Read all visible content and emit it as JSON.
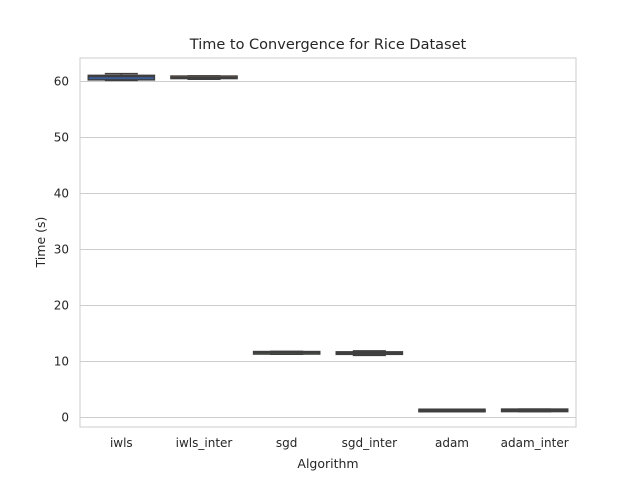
{
  "chart_data": {
    "type": "box",
    "title": "Time to Convergence for Rice Dataset",
    "xlabel": "Algorithm",
    "ylabel": "Time (s)",
    "ylim": [
      -1.7,
      64.2
    ],
    "yticks": [
      0,
      10,
      20,
      30,
      40,
      50,
      60
    ],
    "grid": true,
    "categories": [
      "iwls",
      "iwls_inter",
      "sgd",
      "sgd_inter",
      "adam",
      "adam_inter"
    ],
    "boxes": [
      {
        "min": 60.2,
        "q1": 60.3,
        "median": 60.9,
        "q3": 61.1,
        "max": 61.4,
        "color": "#3b5f9c"
      },
      {
        "min": 60.4,
        "q1": 60.6,
        "median": 60.7,
        "q3": 60.9,
        "max": 61.0,
        "color": "#d9884a"
      },
      {
        "min": 11.3,
        "q1": 11.4,
        "median": 11.6,
        "q3": 11.7,
        "max": 11.8,
        "color": "#5a9a5a"
      },
      {
        "min": 11.1,
        "q1": 11.3,
        "median": 11.5,
        "q3": 11.7,
        "max": 11.9,
        "color": "#b04a4a"
      },
      {
        "min": 1.1,
        "q1": 1.2,
        "median": 1.25,
        "q3": 1.3,
        "max": 1.35,
        "color": "#7e6aa6"
      },
      {
        "min": 1.05,
        "q1": 1.15,
        "median": 1.3,
        "q3": 1.4,
        "max": 1.5,
        "color": "#8b5e4c"
      }
    ]
  }
}
